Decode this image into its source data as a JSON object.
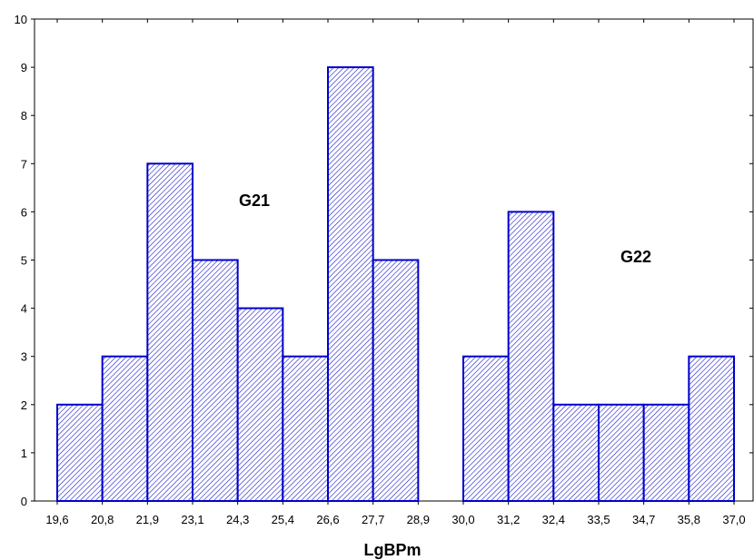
{
  "chart_data": {
    "type": "bar",
    "title": "",
    "xlabel": "LgBPm",
    "ylabel": "",
    "x_ticks": [
      "19,6",
      "20,8",
      "21,9",
      "23,1",
      "24,3",
      "25,4",
      "26,6",
      "27,7",
      "28,9",
      "30,0",
      "31,2",
      "32,4",
      "33,5",
      "34,7",
      "35,8",
      "37,0"
    ],
    "values": [
      2,
      3,
      7,
      5,
      4,
      3,
      9,
      5,
      0,
      3,
      6,
      2,
      2,
      2,
      3
    ],
    "ylim": [
      0,
      10
    ],
    "y_ticks": [
      0,
      1,
      2,
      3,
      4,
      5,
      6,
      7,
      8,
      9,
      10
    ],
    "grid": false,
    "bar_fill": "hatched",
    "bar_color": "#0000cc",
    "annotations": [
      {
        "text": "G21"
      },
      {
        "text": "G22"
      }
    ]
  }
}
